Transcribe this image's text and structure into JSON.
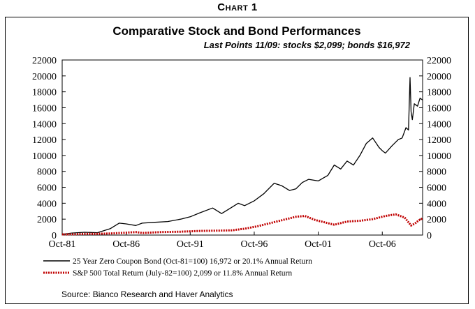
{
  "heading": "Chart 1",
  "chart_data": {
    "type": "line",
    "title": "Comparative Stock and Bond Performances",
    "subtitle": "Last Points 11/09: stocks $2,099; bonds $16,972",
    "x_tick_labels": [
      "Oct-81",
      "Oct-86",
      "Oct-91",
      "Oct-96",
      "Oct-01",
      "Oct-06"
    ],
    "x_range": [
      1981.75,
      2009.9
    ],
    "x_ticks": [
      1981.75,
      1986.75,
      1991.75,
      1996.75,
      2001.75,
      2006.75
    ],
    "ylim": [
      0,
      22000
    ],
    "y_ticks": [
      0,
      2000,
      4000,
      6000,
      8000,
      10000,
      12000,
      14000,
      16000,
      18000,
      20000,
      22000
    ],
    "y_tick_labels": [
      "0",
      "2000",
      "4000",
      "6000",
      "8000",
      "10000",
      "12000",
      "14000",
      "16000",
      "18000",
      "20000",
      "22000"
    ],
    "series": [
      {
        "name": "25 Year Zero Coupon Bond (Oct-81=100) 16,972 or 20.1% Annual Return",
        "color": "#000000",
        "style": "solid",
        "x": [
          1981.75,
          1982.5,
          1983.5,
          1984.5,
          1985.5,
          1986.2,
          1986.75,
          1987.5,
          1988.0,
          1989.0,
          1990.0,
          1991.0,
          1991.75,
          1992.5,
          1993.5,
          1994.2,
          1994.8,
          1995.5,
          1996.0,
          1996.75,
          1997.5,
          1998.3,
          1998.9,
          1999.5,
          2000.0,
          2000.5,
          2001.0,
          2001.75,
          2002.5,
          2003.0,
          2003.5,
          2004.0,
          2004.5,
          2005.0,
          2005.5,
          2006.0,
          2006.5,
          2006.75,
          2007.0,
          2007.5,
          2008.0,
          2008.3,
          2008.6,
          2008.8,
          2008.92,
          2009.0,
          2009.1,
          2009.25,
          2009.5,
          2009.7,
          2009.9
        ],
        "y": [
          100,
          250,
          350,
          300,
          800,
          1500,
          1400,
          1200,
          1500,
          1600,
          1700,
          2000,
          2300,
          2800,
          3400,
          2700,
          3300,
          4000,
          3700,
          4300,
          5200,
          6500,
          6200,
          5600,
          5800,
          6600,
          7000,
          6800,
          7500,
          8800,
          8300,
          9300,
          8800,
          10000,
          11500,
          12200,
          11000,
          10600,
          10300,
          11200,
          12000,
          12200,
          13500,
          13200,
          19800,
          15500,
          14500,
          16500,
          16200,
          17200,
          16972
        ]
      },
      {
        "name": "S&P 500 Total Return (July-82=100) 2,099 or 11.8% Annual Return",
        "color": "#c00000",
        "style": "dotted",
        "x": [
          1981.75,
          1982.58,
          1983.5,
          1984.5,
          1985.5,
          1986.75,
          1987.5,
          1988.0,
          1989.5,
          1991.0,
          1992.5,
          1994.0,
          1995.0,
          1996.0,
          1997.0,
          1998.0,
          1999.0,
          2000.0,
          2000.7,
          2001.5,
          2002.5,
          2003.0,
          2004.0,
          2005.0,
          2006.0,
          2007.0,
          2007.8,
          2008.5,
          2009.0,
          2009.3,
          2009.6,
          2009.9
        ],
        "y": [
          90,
          100,
          150,
          160,
          200,
          300,
          380,
          260,
          380,
          420,
          520,
          560,
          600,
          800,
          1100,
          1500,
          1900,
          2300,
          2400,
          1900,
          1500,
          1300,
          1700,
          1800,
          2000,
          2400,
          2600,
          2200,
          1200,
          1450,
          1850,
          2099
        ]
      }
    ],
    "legend": [
      "25 Year Zero Coupon Bond (Oct-81=100) 16,972 or 20.1% Annual Return",
      "S&P 500 Total Return (July-82=100) 2,099 or 11.8% Annual Return"
    ],
    "source": "Source: Bianco Research and Haver Analytics"
  }
}
